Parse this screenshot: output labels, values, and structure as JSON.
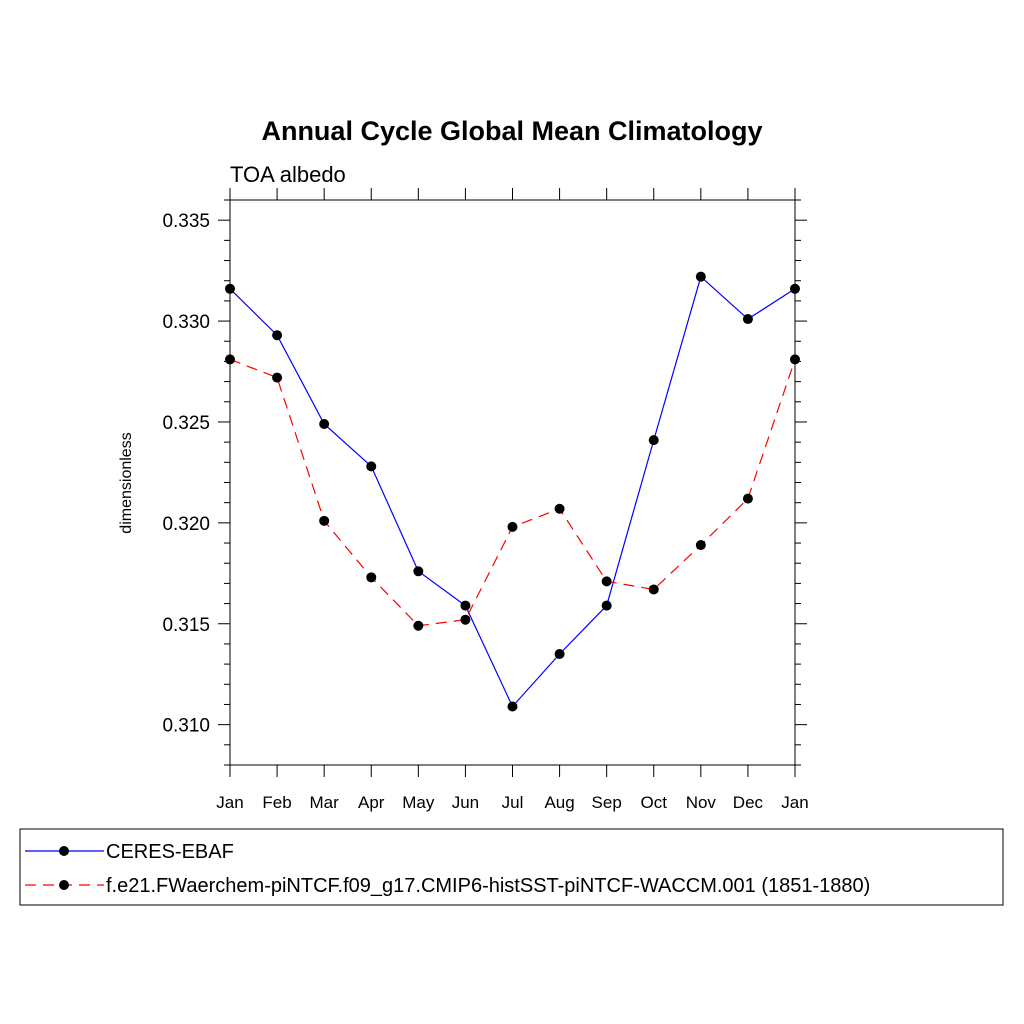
{
  "chart_data": {
    "type": "line",
    "title": "Annual Cycle Global Mean Climatology",
    "subtitle": "TOA albedo",
    "xlabel": "",
    "ylabel": "dimensionless",
    "categories": [
      "Jan",
      "Feb",
      "Mar",
      "Apr",
      "May",
      "Jun",
      "Jul",
      "Aug",
      "Sep",
      "Oct",
      "Nov",
      "Dec",
      "Jan"
    ],
    "ylim": [
      0.308,
      0.336
    ],
    "yticks": [
      "0.310",
      "0.315",
      "0.320",
      "0.325",
      "0.330",
      "0.335"
    ],
    "grid": false,
    "legend_position": "bottom",
    "series": [
      {
        "name": "CERES-EBAF",
        "color": "#0000ff",
        "line_style": "solid",
        "marker": "filled-circle",
        "values": [
          0.3316,
          0.3293,
          0.3249,
          0.3228,
          0.3176,
          0.3159,
          0.3109,
          0.3135,
          0.3159,
          0.3241,
          0.3322,
          0.3301,
          0.3316
        ]
      },
      {
        "name": "f.e21.FWaerchem-piNTCF.f09_g17.CMIP6-histSST-piNTCF-WACCM.001 (1851-1880)",
        "color": "#ff0000",
        "line_style": "dashed",
        "marker": "filled-circle",
        "values": [
          0.3281,
          0.3272,
          0.3201,
          0.3173,
          0.3149,
          0.3152,
          0.3198,
          0.3207,
          0.3171,
          0.3167,
          0.3189,
          0.3212,
          0.3281
        ]
      }
    ]
  }
}
